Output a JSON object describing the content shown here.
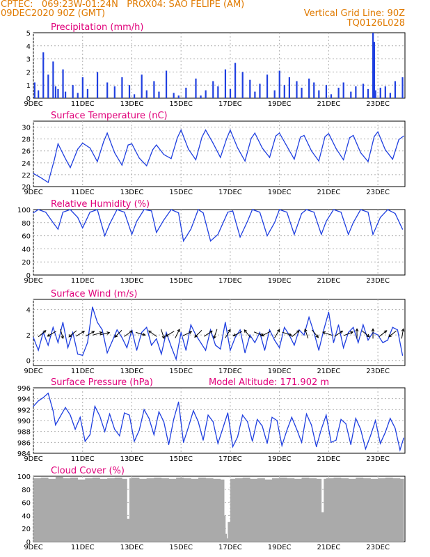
{
  "header": {
    "line1": "CPTEC:   069:23W-01:24N   PROX04: SAO FELIPE (AM)",
    "line2_left": "09DEC2020 90Z (GMT)",
    "line2_right": "Vertical Grid Line: 90Z",
    "line3_right": "TQ0126L028"
  },
  "colors": {
    "header": "#e07a00",
    "title": "#e0007a",
    "series": "#1f3fe0",
    "cloud": "#aaaaaa",
    "grid": "#b0b0b0"
  },
  "x_axis": {
    "tick_labels": [
      "9DEC",
      "11DEC",
      "13DEC",
      "15DEC",
      "17DEC",
      "19DEC",
      "21DEC",
      "23DEC"
    ],
    "tick_days": [
      9,
      11,
      13,
      15,
      17,
      19,
      21,
      23
    ],
    "range_days": [
      9,
      24.1
    ]
  },
  "chart_data": [
    {
      "type": "bar",
      "title": "Precipitation (mm/h)",
      "ylim": [
        0,
        5
      ],
      "yticks": [
        "0",
        "1",
        "2",
        "3",
        "4",
        "5"
      ],
      "grid": true,
      "series": [
        {
          "x": [
            9.05,
            9.2,
            9.4,
            9.6,
            9.8,
            9.9,
            10.0,
            10.2,
            10.3,
            10.6,
            10.8,
            11.0,
            11.2,
            11.6,
            12.0,
            12.3,
            12.6,
            12.9,
            13.1,
            13.4,
            13.6,
            13.9,
            14.1,
            14.4,
            14.7,
            14.9,
            15.2,
            15.6,
            15.8,
            16.0,
            16.3,
            16.5,
            16.8,
            17.0,
            17.2,
            17.5,
            17.8,
            18.0,
            18.2,
            18.5,
            18.8,
            19.0,
            19.2,
            19.4,
            19.7,
            19.9,
            20.2,
            20.4,
            20.6,
            20.9,
            21.1,
            21.4,
            21.6,
            21.9,
            22.1,
            22.4,
            22.6,
            22.8,
            22.85,
            22.9,
            23.1,
            23.3,
            23.5,
            23.7,
            24.0
          ],
          "values": [
            1.2,
            0.6,
            3.5,
            1.8,
            2.8,
            0.9,
            0.7,
            2.2,
            0.5,
            1.0,
            0.4,
            1.6,
            0.7,
            2.0,
            1.2,
            0.9,
            1.6,
            1.0,
            0.3,
            1.8,
            0.6,
            1.3,
            0.5,
            2.1,
            0.4,
            0.2,
            0.8,
            1.5,
            0.2,
            0.6,
            1.3,
            0.9,
            2.2,
            0.7,
            2.7,
            2.0,
            1.4,
            0.5,
            1.1,
            1.8,
            0.6,
            2.1,
            1.0,
            1.6,
            1.3,
            0.8,
            1.5,
            1.2,
            0.6,
            1.0,
            0.3,
            0.8,
            1.2,
            0.5,
            0.9,
            1.1,
            0.7,
            5.0,
            4.3,
            0.6,
            0.8,
            0.9,
            0.4,
            1.3,
            1.6
          ]
        }
      ]
    },
    {
      "type": "line",
      "title": "Surface Temperature (nC)",
      "ylim": [
        20,
        31
      ],
      "yticks": [
        "20",
        "22",
        "24",
        "26",
        "28",
        "30"
      ],
      "grid": true,
      "series": [
        {
          "x": [
            9.0,
            9.3,
            9.6,
            9.85,
            10.0,
            10.3,
            10.5,
            10.8,
            11.0,
            11.3,
            11.6,
            11.85,
            12.0,
            12.3,
            12.6,
            12.85,
            13.0,
            13.3,
            13.6,
            13.85,
            14.0,
            14.3,
            14.6,
            14.85,
            15.0,
            15.3,
            15.6,
            15.85,
            16.0,
            16.3,
            16.6,
            16.85,
            17.0,
            17.3,
            17.6,
            17.85,
            18.0,
            18.3,
            18.6,
            18.85,
            19.0,
            19.3,
            19.6,
            19.85,
            20.0,
            20.3,
            20.6,
            20.85,
            21.0,
            21.3,
            21.6,
            21.85,
            22.0,
            22.3,
            22.6,
            22.85,
            23.0,
            23.3,
            23.6,
            23.85,
            24.05
          ],
          "values": [
            22.2,
            21.5,
            20.7,
            24.5,
            27.2,
            24.7,
            23.2,
            26.3,
            27.3,
            26.5,
            24.2,
            27.5,
            29.0,
            25.7,
            23.6,
            27.0,
            27.2,
            24.8,
            23.5,
            26.2,
            27.0,
            25.4,
            24.7,
            28.2,
            29.5,
            26.3,
            24.5,
            28.3,
            29.5,
            27.3,
            24.9,
            28.0,
            29.5,
            26.5,
            24.3,
            28.1,
            29.0,
            26.5,
            24.9,
            28.5,
            29.0,
            26.8,
            24.6,
            28.3,
            28.6,
            26.0,
            24.3,
            28.4,
            28.9,
            26.4,
            24.5,
            28.2,
            28.6,
            25.7,
            24.2,
            28.4,
            29.2,
            26.2,
            24.6,
            27.9,
            28.5
          ]
        }
      ]
    },
    {
      "type": "line",
      "title": "Relative Humidity (%)",
      "ylim": [
        0,
        100
      ],
      "yticks": [
        "0",
        "20",
        "40",
        "60",
        "80",
        "100"
      ],
      "grid": true,
      "series": [
        {
          "x": [
            9.0,
            9.2,
            9.5,
            9.8,
            10.0,
            10.2,
            10.5,
            10.8,
            11.0,
            11.3,
            11.6,
            11.9,
            12.1,
            12.4,
            12.7,
            13.0,
            13.2,
            13.5,
            13.8,
            14.0,
            14.3,
            14.6,
            14.9,
            15.1,
            15.4,
            15.7,
            15.9,
            16.2,
            16.5,
            16.9,
            17.1,
            17.4,
            17.7,
            17.9,
            18.2,
            18.5,
            18.8,
            19.0,
            19.3,
            19.6,
            19.9,
            20.1,
            20.4,
            20.7,
            20.9,
            21.2,
            21.5,
            21.8,
            22.0,
            22.3,
            22.6,
            22.8,
            23.1,
            23.4,
            23.7,
            24.0
          ],
          "values": [
            95,
            100,
            96,
            80,
            70,
            96,
            100,
            88,
            72,
            96,
            100,
            60,
            78,
            100,
            96,
            62,
            82,
            100,
            98,
            65,
            84,
            100,
            95,
            52,
            70,
            100,
            95,
            52,
            62,
            96,
            98,
            58,
            82,
            100,
            96,
            60,
            80,
            100,
            96,
            62,
            94,
            100,
            96,
            62,
            82,
            100,
            96,
            62,
            80,
            100,
            96,
            62,
            88,
            100,
            94,
            70
          ]
        }
      ]
    },
    {
      "type": "line",
      "title": "Surface Wind (m/s)",
      "ylim": [
        -0.4,
        4.8
      ],
      "yticks": [
        "0",
        "2",
        "4"
      ],
      "grid": true,
      "series": [
        {
          "x": [
            9.0,
            9.2,
            9.4,
            9.6,
            9.8,
            10.0,
            10.2,
            10.4,
            10.6,
            10.8,
            11.0,
            11.2,
            11.4,
            11.6,
            11.8,
            12.0,
            12.2,
            12.4,
            12.6,
            12.8,
            13.0,
            13.2,
            13.4,
            13.6,
            13.8,
            14.0,
            14.2,
            14.4,
            14.6,
            14.8,
            15.0,
            15.2,
            15.4,
            15.6,
            15.8,
            16.0,
            16.2,
            16.4,
            16.6,
            16.8,
            17.0,
            17.2,
            17.4,
            17.6,
            17.8,
            18.0,
            18.2,
            18.4,
            18.6,
            18.8,
            19.0,
            19.2,
            19.4,
            19.6,
            19.8,
            20.0,
            20.2,
            20.4,
            20.6,
            20.8,
            21.0,
            21.2,
            21.4,
            21.6,
            21.8,
            22.0,
            22.2,
            22.4,
            22.6,
            22.8,
            23.0,
            23.2,
            23.4,
            23.6,
            23.8,
            24.0
          ],
          "values": [
            1.8,
            0.8,
            2.2,
            1.2,
            2.6,
            1.4,
            3.0,
            1.0,
            2.2,
            0.5,
            0.4,
            1.4,
            4.2,
            3.0,
            2.4,
            0.6,
            1.5,
            2.4,
            1.8,
            1.0,
            2.4,
            0.8,
            2.2,
            2.6,
            1.2,
            1.7,
            0.5,
            2.2,
            1.1,
            0.1,
            2.2,
            0.8,
            2.8,
            2.0,
            1.4,
            0.8,
            2.4,
            1.2,
            0.9,
            3.0,
            0.8,
            1.8,
            2.4,
            0.6,
            2.0,
            1.4,
            2.2,
            0.8,
            2.4,
            1.6,
            1.0,
            2.6,
            2.0,
            1.2,
            2.4,
            2.0,
            3.4,
            2.2,
            0.8,
            2.4,
            3.8,
            1.4,
            2.8,
            1.0,
            2.2,
            2.6,
            1.4,
            2.8,
            1.6,
            2.2,
            2.0,
            1.4,
            1.6,
            2.6,
            2.4,
            0.4
          ]
        }
      ],
      "vectors": {
        "x": [
          9.35,
          9.75,
          10.15,
          10.6,
          10.9,
          11.3,
          11.6,
          11.9,
          12.45,
          12.85,
          13.35,
          13.85,
          14.25,
          14.55,
          14.85,
          15.25,
          15.7,
          16.1,
          16.4,
          16.9,
          17.3,
          17.7,
          18.15,
          18.45,
          18.9,
          19.3,
          19.65,
          20.1,
          20.45,
          20.95,
          21.4,
          21.8,
          22.15,
          22.5,
          22.8,
          23.2,
          23.6,
          24.0
        ],
        "u": [
          0.6,
          -0.7,
          0.2,
          -0.6,
          0.5,
          0.7,
          1.0,
          1.2,
          -0.5,
          0.7,
          0.7,
          -0.7,
          0.2,
          -0.5,
          0.3,
          0.6,
          -0.5,
          0.6,
          -0.2,
          0.3,
          -0.6,
          -0.4,
          0.5,
          -0.6,
          0.3,
          0.6,
          0.6,
          -0.2,
          0.5,
          -0.6,
          0.6,
          0.5,
          0.0,
          0.6,
          0.0,
          0.5,
          -0.5,
          0.1
        ],
        "v": [
          0.5,
          -0.4,
          -0.7,
          -0.5,
          0.3,
          0.4,
          0.3,
          0.3,
          -0.5,
          0.5,
          -0.2,
          0.5,
          -0.6,
          -0.3,
          0.6,
          0.3,
          -0.5,
          0.4,
          -0.6,
          0.5,
          -0.3,
          0.5,
          -0.2,
          -0.3,
          0.5,
          -0.2,
          0.5,
          0.6,
          -0.6,
          0.2,
          0.4,
          0.2,
          0.6,
          -0.5,
          0.6,
          0.4,
          -0.4,
          0.6
        ]
      }
    },
    {
      "type": "line",
      "title": "Surface Pressure (hPa)",
      "annotation": "Model Altitude: 171.902 m",
      "ylim": [
        984,
        996
      ],
      "yticks": [
        "984",
        "986",
        "988",
        "990",
        "992",
        "994",
        "996"
      ],
      "grid": true,
      "series": [
        {
          "x": [
            9.0,
            9.2,
            9.4,
            9.6,
            9.8,
            9.9,
            10.1,
            10.3,
            10.5,
            10.7,
            10.9,
            11.1,
            11.3,
            11.5,
            11.7,
            11.9,
            12.1,
            12.3,
            12.5,
            12.7,
            12.9,
            13.1,
            13.3,
            13.5,
            13.7,
            13.9,
            14.1,
            14.3,
            14.5,
            14.7,
            14.9,
            15.1,
            15.3,
            15.5,
            15.7,
            15.9,
            16.1,
            16.3,
            16.5,
            16.7,
            16.9,
            17.1,
            17.3,
            17.5,
            17.7,
            17.9,
            18.1,
            18.3,
            18.5,
            18.7,
            18.9,
            19.1,
            19.3,
            19.5,
            19.7,
            19.9,
            20.1,
            20.3,
            20.5,
            20.7,
            20.9,
            21.1,
            21.3,
            21.5,
            21.7,
            21.9,
            22.1,
            22.3,
            22.5,
            22.7,
            22.9,
            23.1,
            23.3,
            23.5,
            23.7,
            23.9,
            24.05
          ],
          "values": [
            992.6,
            993.6,
            994.2,
            995.0,
            991.8,
            989.2,
            990.8,
            992.4,
            991.0,
            988.4,
            990.6,
            986.2,
            987.4,
            992.6,
            990.8,
            988.0,
            991.2,
            988.4,
            987.2,
            991.4,
            991.0,
            986.2,
            988.2,
            992.0,
            990.4,
            987.4,
            991.6,
            989.8,
            985.6,
            990.2,
            993.4,
            986.0,
            988.8,
            991.8,
            989.8,
            986.4,
            991.0,
            989.8,
            985.8,
            988.6,
            991.4,
            985.2,
            987.0,
            991.0,
            989.8,
            986.2,
            990.2,
            989.0,
            985.8,
            990.6,
            990.0,
            985.4,
            988.2,
            990.6,
            988.4,
            986.0,
            991.2,
            989.2,
            985.2,
            988.4,
            991.0,
            986.0,
            986.4,
            990.2,
            989.4,
            985.6,
            990.4,
            988.4,
            984.8,
            987.2,
            990.0,
            985.8,
            987.8,
            990.4,
            988.6,
            984.6,
            986.8
          ]
        }
      ]
    },
    {
      "type": "area",
      "title": "Cloud Cover (%)",
      "ylim": [
        0,
        100
      ],
      "yticks": [
        "0",
        "20",
        "40",
        "60",
        "80",
        "100"
      ],
      "grid": true,
      "series": [
        {
          "x": [
            9.0,
            9.3,
            9.6,
            9.9,
            10.2,
            10.5,
            10.8,
            11.1,
            11.4,
            11.7,
            12.0,
            12.3,
            12.6,
            12.8,
            12.9,
            13.0,
            13.3,
            13.6,
            13.9,
            14.2,
            14.5,
            14.8,
            15.1,
            15.4,
            15.7,
            16.0,
            16.3,
            16.6,
            16.75,
            16.8,
            16.85,
            16.9,
            17.0,
            17.2,
            17.5,
            17.8,
            18.1,
            18.4,
            18.7,
            19.0,
            19.3,
            19.6,
            19.9,
            20.2,
            20.5,
            20.7,
            20.8,
            20.9,
            21.2,
            21.5,
            21.8,
            22.1,
            22.4,
            22.7,
            23.0,
            23.3,
            23.6,
            23.9,
            24.05
          ],
          "values": [
            97,
            98,
            96,
            99,
            97,
            98,
            95,
            97,
            98,
            96,
            97,
            98,
            96,
            35,
            97,
            98,
            96,
            97,
            98,
            97,
            96,
            98,
            97,
            96,
            98,
            97,
            96,
            95,
            40,
            12,
            5,
            30,
            96,
            97,
            98,
            96,
            97,
            95,
            97,
            98,
            97,
            96,
            98,
            97,
            96,
            45,
            96,
            97,
            98,
            97,
            96,
            98,
            97,
            96,
            97,
            98,
            97,
            96,
            97
          ]
        }
      ]
    }
  ]
}
